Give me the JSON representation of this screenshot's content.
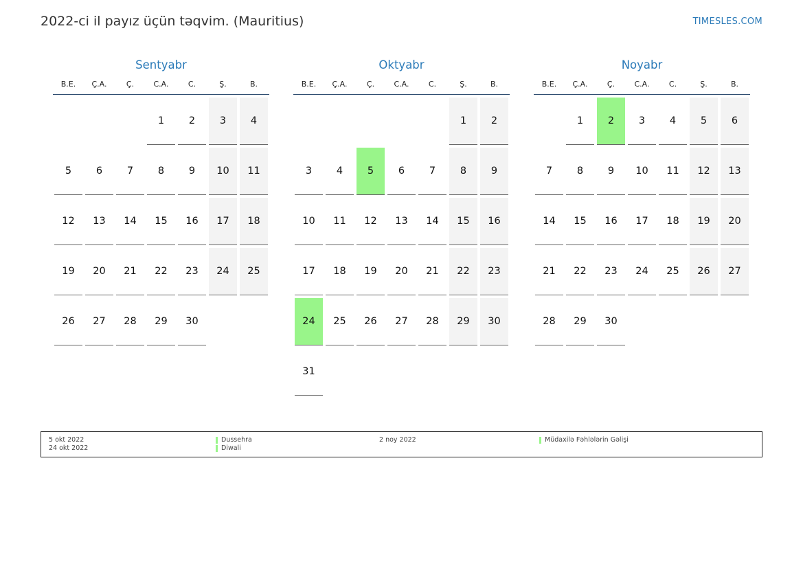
{
  "title": "2022-ci il payız üçün təqvim. (Mauritius)",
  "site": "TIMESLES.COM",
  "weekdays": [
    "B.E.",
    "Ç.A.",
    "Ç.",
    "C.A.",
    "C.",
    "Ş.",
    "B."
  ],
  "colors": {
    "accent": "#2a7ab8",
    "holiday": "#99f58a",
    "weekend": "#f3f3f3"
  },
  "months": [
    {
      "name": "Sentyabr",
      "offset": 3,
      "days": 30,
      "holidays": []
    },
    {
      "name": "Oktyabr",
      "offset": 5,
      "days": 31,
      "holidays": [
        5,
        24
      ]
    },
    {
      "name": "Noyabr",
      "offset": 1,
      "days": 30,
      "holidays": [
        2
      ]
    }
  ],
  "legend": {
    "left": [
      {
        "date": "5 okt 2022",
        "name": "Dussehra"
      },
      {
        "date": "24 okt 2022",
        "name": "Diwali"
      }
    ],
    "right": [
      {
        "date": "2 noy 2022",
        "name": "Müdaxilə Fəhlələrin Gəlişi"
      }
    ]
  }
}
